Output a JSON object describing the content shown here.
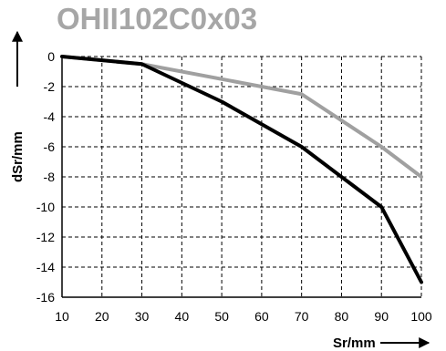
{
  "chart_data": {
    "type": "line",
    "title": "OHII102C0x03",
    "xlabel": "Sr/mm",
    "ylabel": "dSr/mm",
    "xlim": [
      10,
      100
    ],
    "ylim": [
      -16,
      0
    ],
    "x_ticks": [
      10,
      20,
      30,
      40,
      50,
      60,
      70,
      80,
      90,
      100
    ],
    "y_ticks": [
      0,
      -2,
      -4,
      -6,
      -8,
      -10,
      -12,
      -14,
      -16
    ],
    "grid": "dashed",
    "series": [
      {
        "color": "#000000",
        "x": [
          10,
          30,
          50,
          70,
          90,
          100
        ],
        "y": [
          0,
          -0.5,
          -3,
          -6,
          -10,
          -15
        ]
      },
      {
        "color": "#a0a0a0",
        "x": [
          10,
          30,
          70,
          90,
          100
        ],
        "y": [
          0,
          -0.5,
          -2.5,
          -6,
          -8
        ]
      }
    ]
  }
}
